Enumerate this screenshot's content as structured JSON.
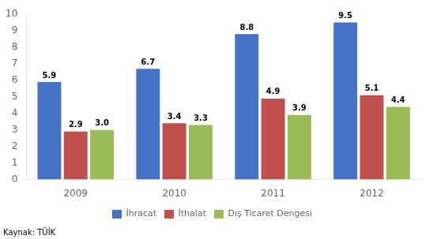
{
  "chart_data": {
    "type": "bar",
    "categories": [
      "2009",
      "2010",
      "2011",
      "2012"
    ],
    "series": [
      {
        "name": "İhracat",
        "color": "#4472C4",
        "values": [
          5.9,
          6.7,
          8.8,
          9.5
        ],
        "value_labels": [
          "5.9",
          "6.7",
          "8.8",
          "9.5"
        ]
      },
      {
        "name": "İthalat",
        "color": "#C0504D",
        "values": [
          2.9,
          3.4,
          4.9,
          5.1
        ],
        "value_labels": [
          "2.9",
          "3.4",
          "4.9",
          "5.1"
        ]
      },
      {
        "name": "Dış Ticaret Dengesi",
        "color": "#9BBB59",
        "values": [
          3.0,
          3.3,
          3.9,
          4.4
        ],
        "value_labels": [
          "3.0",
          "3.3",
          "3.9",
          "4.4"
        ]
      }
    ],
    "ylim": [
      0,
      10
    ],
    "yticks": [
      0,
      1,
      2,
      3,
      4,
      5,
      6,
      7,
      8,
      9,
      10
    ],
    "grid": false,
    "legend": "bottom",
    "data_labels": true,
    "annotations": [
      "Kaynak: TÜİK"
    ]
  }
}
